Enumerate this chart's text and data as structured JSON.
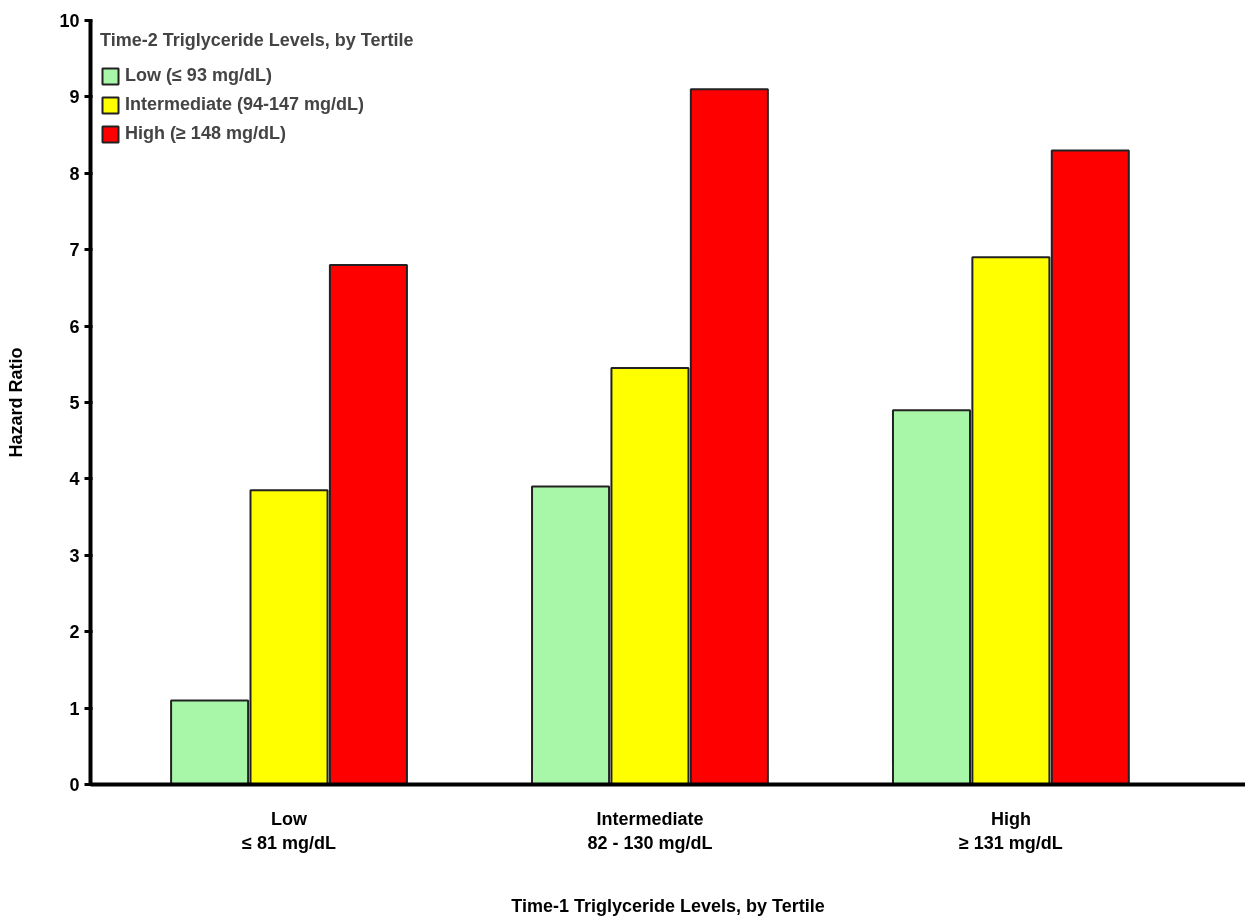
{
  "chart_data": {
    "type": "bar",
    "legend_title": "Time-2 Triglyceride Levels, by Tertile",
    "xlabel": "Time-1 Triglyceride Levels, by Tertile",
    "ylabel": "Hazard Ratio",
    "categories": [
      "Low\n≤ 81 mg/dL",
      "Intermediate\n82 - 130 mg/dL",
      "High\n≥ 131 mg/dL"
    ],
    "series": [
      {
        "name": "Low (≤ 93 mg/dL)",
        "color": "#a8f7a8",
        "values": [
          1.1,
          3.9,
          4.9
        ]
      },
      {
        "name": "Intermediate (94-147 mg/dL)",
        "color": "#ffff00",
        "values": [
          3.85,
          5.45,
          6.9
        ]
      },
      {
        "name": "High (≥ 148 mg/dL)",
        "color": "#ff0000",
        "values": [
          6.8,
          9.1,
          8.3
        ]
      }
    ],
    "ylim": [
      0,
      10
    ],
    "yticks": [
      0,
      1,
      2,
      3,
      4,
      5,
      6,
      7,
      8,
      9,
      10
    ],
    "grid": false,
    "legend": "top left"
  }
}
